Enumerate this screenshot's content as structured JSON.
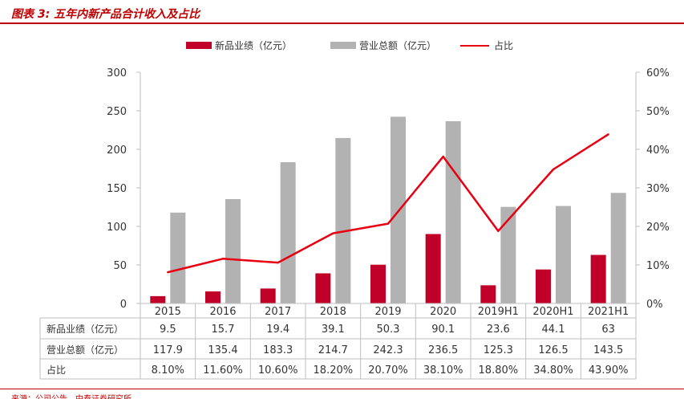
{
  "header": {
    "title": "图表 3: 五年内新产品合计收入及占比"
  },
  "footer": {
    "source": "来源：公司公告，中泰证券研究所"
  },
  "chart_data": {
    "type": "bar",
    "categories": [
      "2015",
      "2016",
      "2017",
      "2018",
      "2019",
      "2020",
      "2019H1",
      "2020H1",
      "2021H1"
    ],
    "series": [
      {
        "name": "新品业绩（亿元）",
        "type": "bar",
        "axis": "left",
        "color": "#c00028",
        "values": [
          9.5,
          15.7,
          19.4,
          39.1,
          50.3,
          90.1,
          23.6,
          44.1,
          63
        ],
        "labels": [
          "9.5",
          "15.7",
          "19.4",
          "39.1",
          "50.3",
          "90.1",
          "23.6",
          "44.1",
          "63"
        ]
      },
      {
        "name": "营业总额（亿元）",
        "type": "bar",
        "axis": "left",
        "color": "#b2b2b2",
        "values": [
          117.9,
          135.4,
          183.3,
          214.7,
          242.3,
          236.5,
          125.3,
          126.5,
          143.5
        ],
        "labels": [
          "117.9",
          "135.4",
          "183.3",
          "214.7",
          "242.3",
          "236.5",
          "125.3",
          "126.5",
          "143.5"
        ]
      },
      {
        "name": "占比",
        "type": "line",
        "axis": "right",
        "color": "#e60012",
        "values": [
          8.1,
          11.6,
          10.6,
          18.2,
          20.7,
          38.1,
          18.8,
          34.8,
          43.9
        ],
        "labels": [
          "8.10%",
          "11.60%",
          "10.60%",
          "18.20%",
          "20.70%",
          "38.10%",
          "18.80%",
          "34.80%",
          "43.90%"
        ]
      }
    ],
    "y_left": {
      "ylim": [
        0,
        300
      ],
      "ticks": [
        "0",
        "50",
        "100",
        "150",
        "200",
        "250",
        "300"
      ]
    },
    "y_right": {
      "ylim": [
        0,
        60
      ],
      "ticks": [
        "0%",
        "10%",
        "20%",
        "30%",
        "40%",
        "50%",
        "60%"
      ]
    },
    "legend": "top-center",
    "grid": false,
    "data_table": true
  }
}
